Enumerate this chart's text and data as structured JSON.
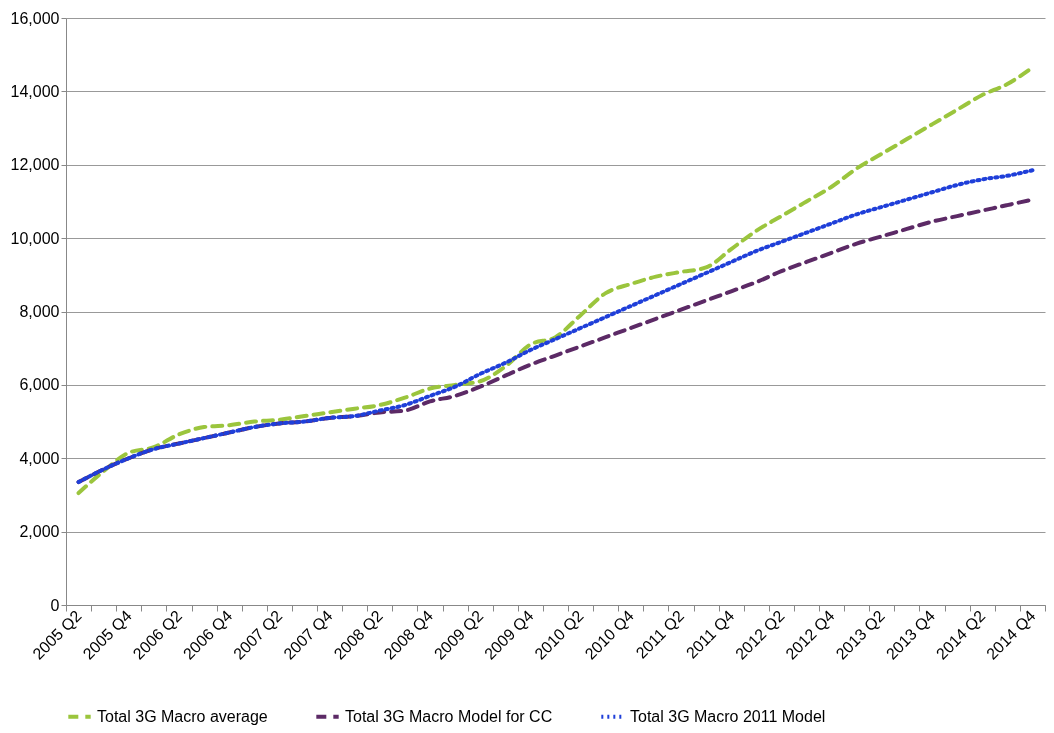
{
  "chart_data": {
    "type": "line",
    "categories": [
      "2005 Q2",
      null,
      "2005 Q4",
      null,
      "2006 Q2",
      null,
      "2006 Q4",
      null,
      "2007 Q2",
      null,
      "2007 Q4",
      null,
      "2008 Q2",
      null,
      "2008 Q4",
      null,
      "2009 Q2",
      null,
      "2009 Q4",
      null,
      "2010 Q2",
      null,
      "2010 Q4",
      null,
      "2011 Q2",
      null,
      "2011 Q4",
      null,
      "2012 Q2",
      null,
      "2012 Q4",
      null,
      "2013 Q2",
      null,
      "2013 Q4",
      null,
      "2014 Q2",
      null,
      "2014 Q4"
    ],
    "series": [
      {
        "name": "Total 3G Macro average",
        "color": "#9bc53d",
        "line_style": "dashed",
        "values": [
          3050,
          3650,
          4150,
          4300,
          4650,
          4850,
          4900,
          5000,
          5050,
          5150,
          5250,
          5350,
          5450,
          5650,
          5900,
          6000,
          6100,
          6500,
          7100,
          7300,
          7900,
          8500,
          8750,
          8950,
          9080,
          9200,
          9700,
          10200,
          10600,
          11000,
          11400,
          11900,
          12300,
          12700,
          13100,
          13500,
          13900,
          14200,
          14650
        ]
      },
      {
        "name": "Total 3G Macro Model for CC",
        "color": "#5c2a66",
        "line_style": "dashed",
        "values": [
          3350,
          3700,
          4000,
          4250,
          4400,
          4550,
          4700,
          4850,
          4950,
          5000,
          5100,
          5150,
          5250,
          5300,
          5550,
          5700,
          5950,
          6250,
          6550,
          6800,
          7050,
          7300,
          7550,
          7800,
          8050,
          8300,
          8550,
          8800,
          9100,
          9350,
          9600,
          9850,
          10050,
          10250,
          10450,
          10600,
          10750,
          10900,
          11050
        ]
      },
      {
        "name": "Total 3G Macro 2011 Model",
        "color": "#1f3fd9",
        "line_style": "dotted",
        "values": [
          3350,
          3700,
          4000,
          4250,
          4400,
          4550,
          4700,
          4850,
          4950,
          5000,
          5100,
          5150,
          5300,
          5450,
          5700,
          5950,
          6300,
          6600,
          6950,
          7250,
          7550,
          7850,
          8150,
          8450,
          8750,
          9050,
          9350,
          9650,
          9900,
          10150,
          10400,
          10650,
          10850,
          11050,
          11250,
          11450,
          11600,
          11700,
          11850
        ]
      }
    ],
    "ylim": [
      0,
      16000
    ],
    "yticks": [
      0,
      {
        "value": 2000,
        "label": "2,000"
      },
      {
        "value": 4000,
        "label": "4,000"
      },
      {
        "value": 6000,
        "label": "6,000"
      },
      {
        "value": 8000,
        "label": "8,000"
      },
      {
        "value": 10000,
        "label": "10,000"
      },
      {
        "value": 12000,
        "label": "12,000"
      },
      {
        "value": 14000,
        "label": "14,000"
      },
      {
        "value": 16000,
        "label": "16,000"
      }
    ],
    "grid": "y",
    "legend": "bottom"
  }
}
